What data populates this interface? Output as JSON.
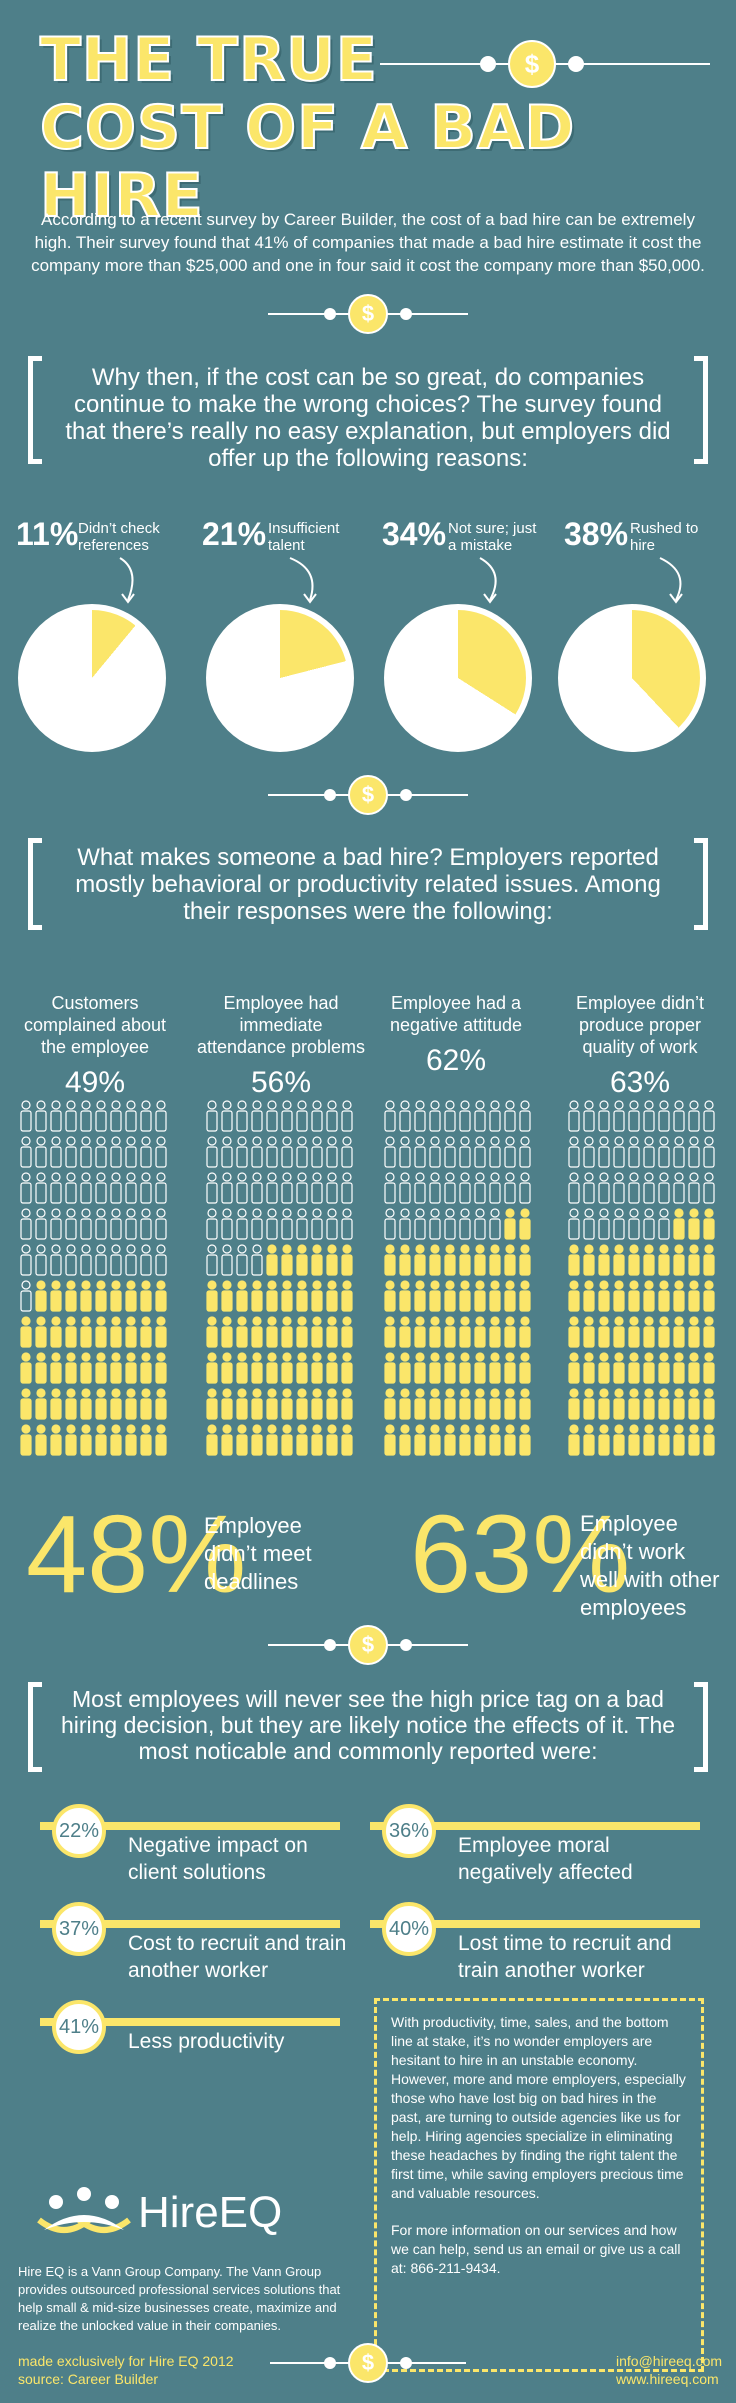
{
  "title": {
    "line1": "THE TRUE",
    "line2": "COST OF A BAD HIRE"
  },
  "intro": "According to a recent survey by Career Builder, the cost of a bad hire can be extremely high. Their survey found that 41% of companies that made a bad hire estimate it cost the company more than $25,000 and one in four said it cost the company more than $50,000.",
  "coin_symbol": "$",
  "reasons_intro": "Why then, if the cost can be so great, do companies continue to make the wrong choices?  The survey found that there’s really no easy explanation, but employers did offer up the following reasons:",
  "reasons": [
    {
      "pct": "11%",
      "label": "Didn’t check references",
      "value": 11
    },
    {
      "pct": "21%",
      "label": "Insufficient talent",
      "value": 21
    },
    {
      "pct": "34%",
      "label": "Not sure; just a mistake",
      "value": 34
    },
    {
      "pct": "38%",
      "label": "Rushed to hire",
      "value": 38
    }
  ],
  "badhire_intro": "What makes someone a bad hire? Employers reported mostly behavioral or productivity related issues. Among their responses were the following:",
  "behaviors": [
    {
      "label": "Customers complained about the employee",
      "pct": "49%",
      "value": 49
    },
    {
      "label": "Employee had immediate attendance problems",
      "pct": "56%",
      "value": 56
    },
    {
      "label": "Employee had a negative attitude",
      "pct": "62%",
      "value": 62
    },
    {
      "label": "Employee didn’t produce proper quality of work",
      "pct": "63%",
      "value": 63
    }
  ],
  "big_stats": [
    {
      "pct": "48%",
      "label": "Employee didn’t meet deadlines"
    },
    {
      "pct": "63%",
      "label": "Employee didn’t work well with other employees"
    }
  ],
  "effects_intro": "Most employees will never see the high price tag on a bad hiring decision, but they are likely notice the effects of it. The most noticable and commonly reported were:",
  "effects": [
    {
      "pct": "22%",
      "label": "Negative impact on client solutions"
    },
    {
      "pct": "36%",
      "label": "Employee moral negatively affected"
    },
    {
      "pct": "37%",
      "label": "Cost to recruit and train another worker"
    },
    {
      "pct": "40%",
      "label": "Lost time to recruit and train another worker"
    },
    {
      "pct": "41%",
      "label": "Less productivity"
    }
  ],
  "closing": {
    "p1": "With productivity, time, sales, and the bottom line at stake, it’s no wonder employers are hesitant to hire in an unstable economy.   However, more and more employers, especially those who have lost big on bad hires in the past, are turning to outside agencies like us for help.   Hiring agencies specialize in eliminating these headaches by finding the right talent the first time, while saving employers precious time and valuable resources.",
    "p2": "For more information on our services and how we can help, send us an email or give us a call at: 866-211-9434."
  },
  "brand": {
    "name": "HireEQ",
    "about": "Hire EQ is a Vann Group Company. The Vann Group provides outsourced professional services solutions that help small & mid-size businesses create, maximize and realize the unlocked value in their companies.",
    "made_for": "made exclusively for Hire EQ 2012",
    "source": "source:  Career Builder",
    "email": "info@hireeq.com",
    "website": "www.hireeq.com"
  },
  "colors": {
    "background": "#4e7f89",
    "accent": "#fbe66a",
    "text": "#ffffff"
  }
}
